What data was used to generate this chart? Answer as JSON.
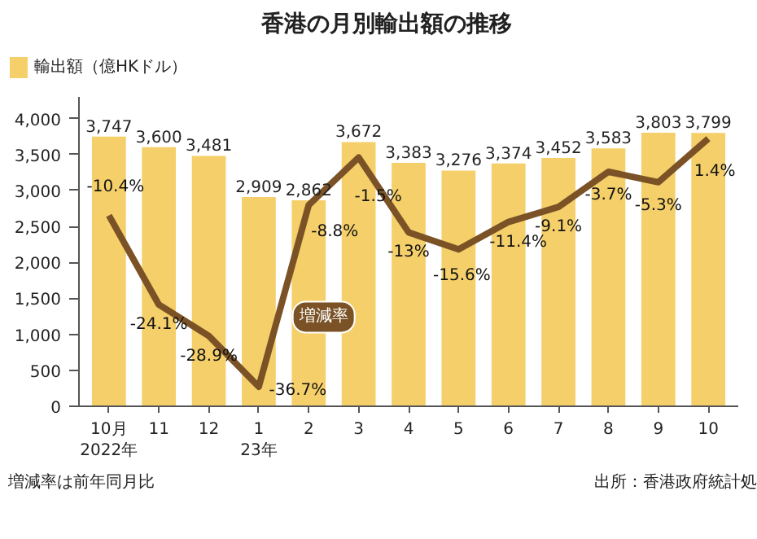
{
  "chart_data": {
    "type": "bar",
    "title": "香港の月別輸出額の推移",
    "categories": [
      "10月\n2022年",
      "11",
      "12",
      "1\n23年",
      "2",
      "3",
      "4",
      "5",
      "6",
      "7",
      "8",
      "9",
      "10"
    ],
    "ylim": [
      0,
      4300
    ],
    "yticks": [
      {
        "value": 0,
        "label": "0"
      },
      {
        "value": 500,
        "label": "500"
      },
      {
        "value": 1000,
        "label": "1,000"
      },
      {
        "value": 1500,
        "label": "1,500"
      },
      {
        "value": 2000,
        "label": "2,000"
      },
      {
        "value": 2500,
        "label": "2,500"
      },
      {
        "value": 3000,
        "label": "3,000"
      },
      {
        "value": 3500,
        "label": "3,500"
      },
      {
        "value": 4000,
        "label": "4,000"
      }
    ],
    "y2lim": [
      -39.7,
      7.8
    ],
    "grid": false,
    "legend": "top left",
    "series": [
      {
        "name": "輸出額（億HKドル）",
        "color": "#f5cf6a",
        "values": [
          3747,
          3600,
          3481,
          2909,
          2862,
          3672,
          3383,
          3276,
          3374,
          3452,
          3583,
          3803,
          3799
        ],
        "value_labels": [
          "3,747",
          "3,600",
          "3,481",
          "2,909",
          "2,862",
          "3,672",
          "3,383",
          "3,276",
          "3,374",
          "3,452",
          "3,583",
          "3,803",
          "3,799"
        ]
      },
      {
        "name": "増減率",
        "color": "#7a5226",
        "type": "line",
        "axis": "y2",
        "line_style": "solid",
        "values": [
          -10.4,
          -24.1,
          -28.9,
          -36.7,
          -8.8,
          -1.5,
          -13,
          -15.6,
          -11.4,
          -9.1,
          -3.7,
          -5.3,
          1.4
        ],
        "value_labels": [
          "-10.4%",
          "-24.1%",
          "-28.9%",
          "-36.7%",
          "-8.8%",
          "-1.5%",
          "-13%",
          "-15.6%",
          "-11.4%",
          "-9.1%",
          "-3.7%",
          "-5.3%",
          "1.4%"
        ]
      }
    ],
    "annotations": [
      "増減率は前年同月比",
      "出所：香港政府統計処"
    ]
  }
}
